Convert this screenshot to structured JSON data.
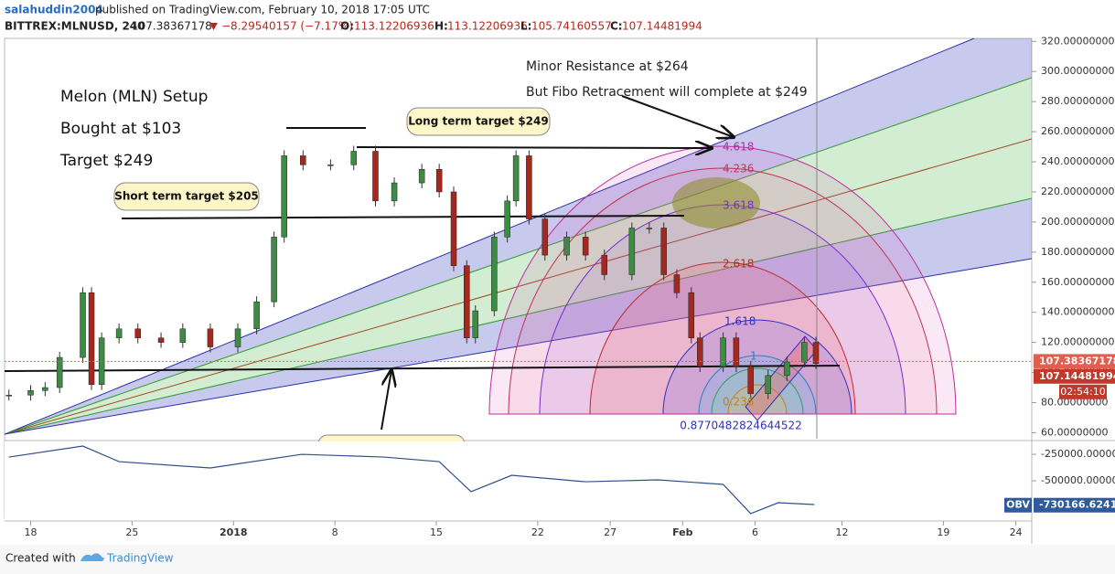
{
  "header": {
    "author": "salahuddin2004",
    "published": "published on TradingView.com, February 10, 2018 17:05 UTC",
    "symbol": "BITTREX:MLNUSD, 240",
    "last": "107.38367178",
    "change": "−8.29540157 (−7.17%)",
    "o_label": "O:",
    "o": "113.12206936",
    "h_label": "H:",
    "h": "113.12206936",
    "l_label": "L:",
    "l": "105.74160557",
    "c_label": "C:",
    "c": "107.14481994"
  },
  "annotations": {
    "setup": "Melon (MLN) Setup",
    "bought": "Bought at $103",
    "target": "Target $249",
    "resistance": "Minor Resistance at $264",
    "fibo": "But Fibo Retracement will complete at $249",
    "long_target": "Long term target $249",
    "short_target": "Short term target $205"
  },
  "fib_labels": [
    "4.618",
    "4.236",
    "3.618",
    "2.618",
    "1.618",
    "1",
    "0.236",
    "0.8770482824644522"
  ],
  "countdown": "02:54:10",
  "chart_data": [
    {
      "type": "candlestick",
      "up_color": "#3d8b45",
      "down_color": "#a3281f",
      "x": [
        -1.5,
        0,
        1,
        2,
        3.6,
        4.2,
        4.9,
        6.1,
        7.4,
        9,
        10.5,
        12.4,
        14.3,
        15.6,
        16.8,
        17.5,
        18.8,
        20.7,
        22.3,
        23.8,
        25.1,
        27,
        28.2,
        29.2,
        30.1,
        30.7,
        32,
        32.9,
        33.5,
        34.4,
        35.5,
        37,
        38.3,
        39.6,
        41.5,
        42.7,
        43.7,
        44.6,
        45.6,
        46.2,
        47.8,
        48.7,
        49.7,
        50.9,
        52.2,
        53.4,
        54.2
      ],
      "values": [
        85,
        88,
        90,
        110,
        153,
        92,
        123,
        129,
        123,
        120,
        129,
        117,
        129,
        147,
        190,
        244,
        238,
        238,
        247,
        214,
        226,
        235,
        220,
        171,
        123,
        141,
        190,
        214,
        244,
        202,
        178,
        190,
        178,
        165,
        196,
        196,
        165,
        153,
        123,
        104,
        123,
        104,
        86,
        98,
        107,
        120,
        106
      ],
      "xlim": [
        -1.8,
        69.1
      ],
      "ylim": [
        56,
        322
      ],
      "yticks": [
        {
          "value": 60,
          "label": "60.00000000"
        },
        {
          "value": 80,
          "label": "80.00000000"
        },
        {
          "value": 100,
          "label": "100.00000000"
        },
        {
          "value": 120,
          "label": "120.00000000"
        },
        {
          "value": 140,
          "label": "140.00000000"
        },
        {
          "value": 160,
          "label": "160.00000000"
        },
        {
          "value": 180,
          "label": "180.00000000"
        },
        {
          "value": 200,
          "label": "200.00000000"
        },
        {
          "value": 220,
          "label": "220.00000000"
        },
        {
          "value": 240,
          "label": "240.00000000"
        },
        {
          "value": 260,
          "label": "260.00000000"
        },
        {
          "value": 280,
          "label": "280.00000000"
        },
        {
          "value": 300,
          "label": "300.00000000"
        },
        {
          "value": 320,
          "label": "320.00000000"
        }
      ],
      "xticks": [
        {
          "value": 0,
          "label": "18"
        },
        {
          "value": 7,
          "label": "25"
        },
        {
          "value": 14,
          "label": "2018"
        },
        {
          "value": 21,
          "label": "8"
        },
        {
          "value": 28,
          "label": "15"
        },
        {
          "value": 35,
          "label": "22"
        },
        {
          "value": 40,
          "label": "27"
        },
        {
          "value": 45,
          "label": "Feb"
        },
        {
          "value": 50,
          "label": "6"
        },
        {
          "value": 56,
          "label": "12"
        },
        {
          "value": 63,
          "label": "19"
        },
        {
          "value": 68,
          "label": "24"
        }
      ],
      "badges": [
        {
          "value": 107.38367178,
          "label": "107.38367178",
          "color": "#e0604f"
        },
        {
          "value": 107.14481994,
          "label": "107.14481994",
          "color": "#c0392b"
        }
      ]
    },
    {
      "type": "line",
      "name": "OBV",
      "color": "#2f4f8a",
      "x": [
        -1.5,
        3.6,
        6.1,
        12.4,
        18.7,
        24.4,
        28.2,
        30.4,
        33.2,
        38.3,
        43.3,
        47.8,
        49.7,
        51.6,
        54.1
      ],
      "values": [
        -276000,
        -172000,
        -319000,
        -379000,
        -250000,
        -276000,
        -319000,
        -603000,
        -448000,
        -509000,
        -491000,
        -534000,
        -810000,
        -707000,
        -724000
      ],
      "xlim": [
        -1.8,
        69.1
      ],
      "ylim": [
        -862000,
        -146000
      ],
      "yticks": [
        {
          "value": -250000,
          "label": "-250000.000000"
        },
        {
          "value": -500000,
          "label": "-500000.000000"
        }
      ],
      "badge": {
        "value": -730166.6241,
        "label": "-730166.6241",
        "color": "#2f5a9c"
      }
    }
  ],
  "footer": {
    "created": "Created with",
    "brand": "TradingView"
  }
}
